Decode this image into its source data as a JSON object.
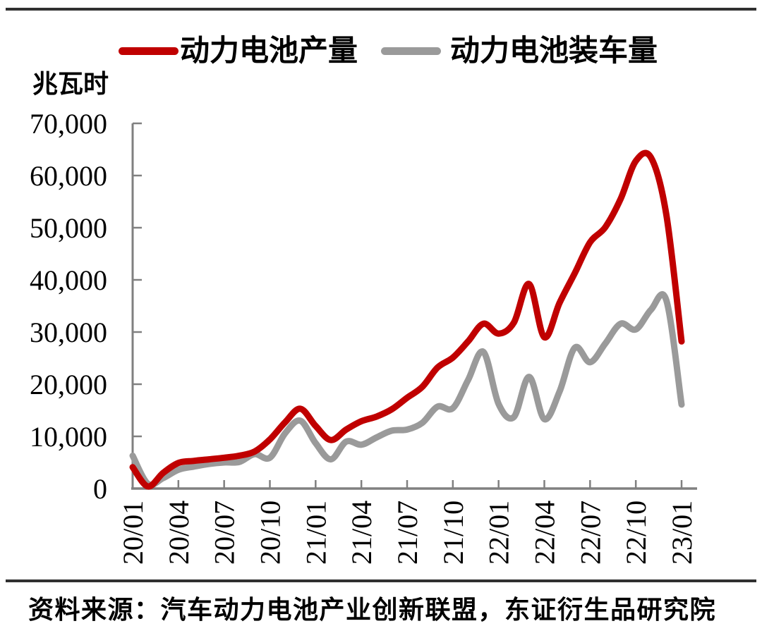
{
  "colors": {
    "production": "#c00000",
    "installation": "#9a9a9a",
    "axis": "#808080",
    "rule": "#303030",
    "text": "#000000"
  },
  "footer": {
    "source": "资料来源：汽车动力电池产业创新联盟，东证衍生品研究院"
  },
  "chart_data": {
    "type": "line",
    "title": "",
    "ylabel": "兆瓦时",
    "xlabel": "",
    "unit": "兆瓦时",
    "ylim": [
      0,
      70000
    ],
    "y_tick_step": 10000,
    "y_tick_labels": [
      "0",
      "10,000",
      "20,000",
      "30,000",
      "40,000",
      "50,000",
      "60,000",
      "70,000"
    ],
    "grid": false,
    "legend_position": "top",
    "smoothed": true,
    "x": [
      "20/01",
      "20/02",
      "20/03",
      "20/04",
      "20/05",
      "20/06",
      "20/07",
      "20/08",
      "20/09",
      "20/10",
      "20/11",
      "20/12",
      "21/01",
      "21/02",
      "21/03",
      "21/04",
      "21/05",
      "21/06",
      "21/07",
      "21/08",
      "21/09",
      "21/10",
      "21/11",
      "21/12",
      "22/01",
      "22/02",
      "22/03",
      "22/04",
      "22/05",
      "22/06",
      "22/07",
      "22/08",
      "22/09",
      "22/10",
      "22/11",
      "22/12",
      "23/01"
    ],
    "x_tick_labels": [
      "20/01",
      "20/04",
      "20/07",
      "20/10",
      "21/01",
      "21/04",
      "21/07",
      "21/10",
      "22/01",
      "22/04",
      "22/07",
      "22/10",
      "23/01"
    ],
    "series": [
      {
        "name": "动力电池产量",
        "color": "#c00000",
        "values": [
          4100,
          400,
          3000,
          4900,
          5300,
          5600,
          5900,
          6300,
          7100,
          9400,
          12700,
          15300,
          12000,
          9300,
          11300,
          12900,
          13800,
          15200,
          17400,
          19500,
          23200,
          25100,
          28200,
          31600,
          29700,
          31800,
          39200,
          29000,
          35600,
          41300,
          47200,
          50100,
          55500,
          62800,
          63400,
          52500,
          28200
        ]
      },
      {
        "name": "动力电池装车量",
        "color": "#9a9a9a",
        "values": [
          6300,
          900,
          2000,
          3600,
          4200,
          4700,
          5000,
          5100,
          6600,
          5900,
          10600,
          13000,
          8700,
          5600,
          9000,
          8400,
          9800,
          11100,
          11300,
          12600,
          15700,
          15400,
          20800,
          26200,
          16200,
          13700,
          21400,
          13300,
          18600,
          27000,
          24200,
          27800,
          31600,
          30500,
          34300,
          36100,
          16100
        ]
      }
    ]
  }
}
